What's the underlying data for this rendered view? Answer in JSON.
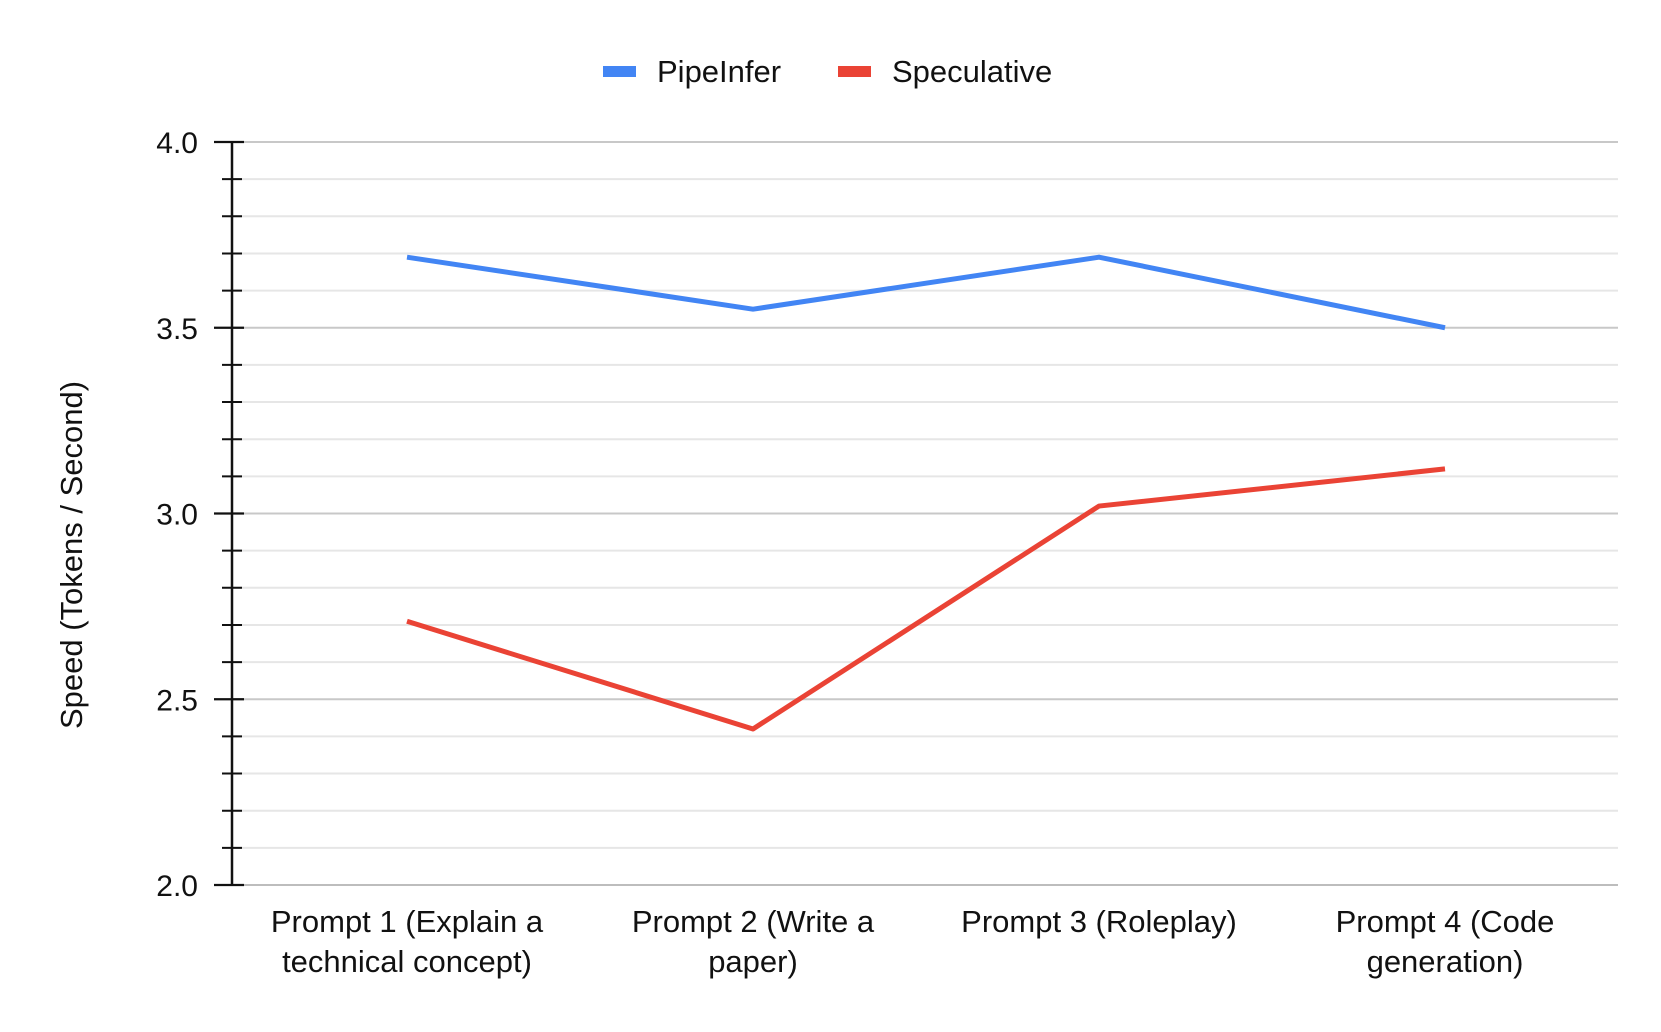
{
  "chart_data": {
    "type": "line",
    "title": "",
    "xlabel": "",
    "ylabel": "Speed (Tokens / Second)",
    "ylim": [
      2.0,
      4.0
    ],
    "yticks": [
      "2.0",
      "2.5",
      "3.0",
      "3.5",
      "4.0"
    ],
    "y_minor_step": 0.1,
    "grid": true,
    "legend_position": "top-center",
    "categories": [
      [
        "Prompt 1 (Explain a",
        "technical concept)"
      ],
      [
        "Prompt 2 (Write a",
        "paper)"
      ],
      [
        "Prompt 3 (Roleplay)"
      ],
      [
        "Prompt 4 (Code",
        "generation)"
      ]
    ],
    "series": [
      {
        "name": "PipeInfer",
        "color": "#4285f4",
        "values": [
          3.69,
          3.55,
          3.69,
          3.5
        ]
      },
      {
        "name": "Speculative",
        "color": "#ea4335",
        "values": [
          2.71,
          2.42,
          3.02,
          3.12
        ]
      }
    ]
  }
}
